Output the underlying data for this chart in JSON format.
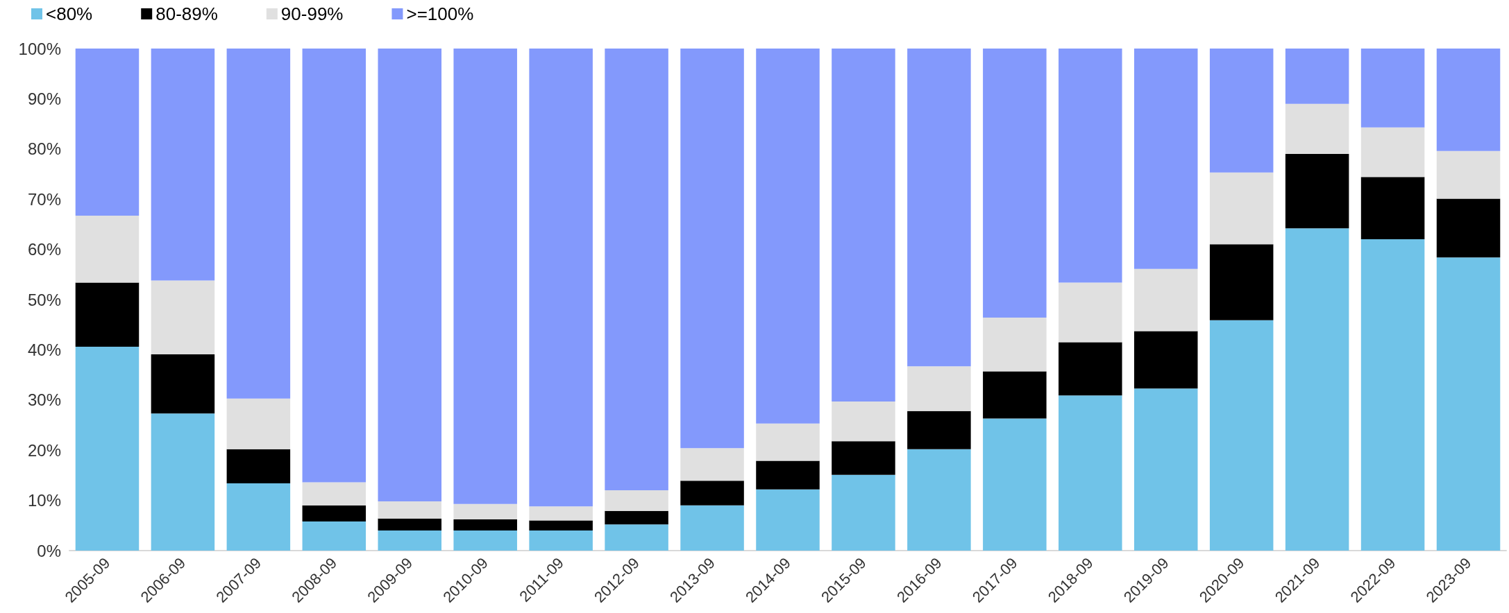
{
  "chart_data": {
    "type": "bar",
    "stacked": true,
    "legend": "top left",
    "grid": false,
    "categories": [
      "2005-09",
      "2006-09",
      "2007-09",
      "2008-09",
      "2009-09",
      "2010-09",
      "2011-09",
      "2012-09",
      "2013-09",
      "2014-09",
      "2015-09",
      "2016-09",
      "2017-09",
      "2018-09",
      "2019-09",
      "2020-09",
      "2021-09",
      "2022-09",
      "2023-09"
    ],
    "series": [
      {
        "name": "<80%",
        "color": "#70c3e8",
        "values": [
          40.6,
          27.3,
          13.4,
          5.8,
          4.0,
          4.0,
          4.0,
          5.2,
          9.0,
          12.2,
          15.1,
          20.2,
          26.3,
          30.9,
          32.3,
          45.9,
          64.2,
          62.0,
          58.4
        ]
      },
      {
        "name": "80-89%",
        "color": "#000000",
        "values": [
          12.8,
          11.8,
          6.8,
          3.2,
          2.4,
          2.2,
          2.0,
          2.7,
          4.9,
          5.7,
          6.7,
          7.6,
          9.4,
          10.6,
          11.4,
          15.1,
          14.8,
          12.4,
          11.7
        ]
      },
      {
        "name": "90-99%",
        "color": "#e0e0e0",
        "values": [
          13.3,
          14.7,
          10.1,
          4.6,
          3.4,
          3.1,
          2.8,
          4.1,
          6.5,
          7.4,
          7.9,
          8.9,
          10.7,
          11.9,
          12.4,
          14.3,
          10.0,
          9.9,
          9.5
        ]
      },
      {
        "name": ">=100%",
        "color": "#8399fc",
        "values": [
          33.3,
          46.2,
          69.7,
          86.4,
          90.2,
          90.7,
          91.2,
          88.0,
          79.6,
          74.7,
          70.3,
          63.3,
          53.6,
          46.6,
          43.9,
          24.7,
          11.0,
          15.7,
          20.4
        ]
      }
    ],
    "ylim": [
      0,
      100
    ],
    "yticks": [
      {
        "value": 0,
        "label": "0%"
      },
      {
        "value": 10,
        "label": "10%"
      },
      {
        "value": 20,
        "label": "20%"
      },
      {
        "value": 30,
        "label": "30%"
      },
      {
        "value": 40,
        "label": "40%"
      },
      {
        "value": 50,
        "label": "50%"
      },
      {
        "value": 60,
        "label": "60%"
      },
      {
        "value": 70,
        "label": "70%"
      },
      {
        "value": 80,
        "label": "80%"
      },
      {
        "value": 90,
        "label": "90%"
      },
      {
        "value": 100,
        "label": "100%"
      }
    ]
  }
}
